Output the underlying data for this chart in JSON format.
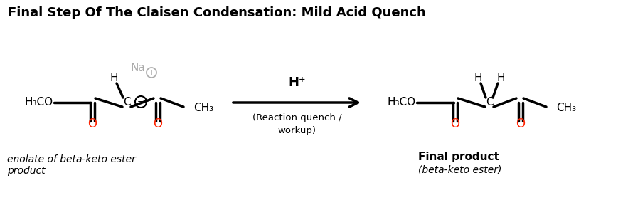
{
  "title": "Final Step Of The Claisen Condensation: Mild Acid Quench",
  "title_fontsize": 13,
  "title_fontweight": "bold",
  "bg_color": "#ffffff",
  "black": "#000000",
  "red": "#ff2200",
  "gray": "#aaaaaa",
  "left_label_line1": "enolate of beta-keto ester",
  "left_label_line2": "product",
  "right_label_bold": "Final product",
  "right_label_italic": "(beta-keto ester)"
}
